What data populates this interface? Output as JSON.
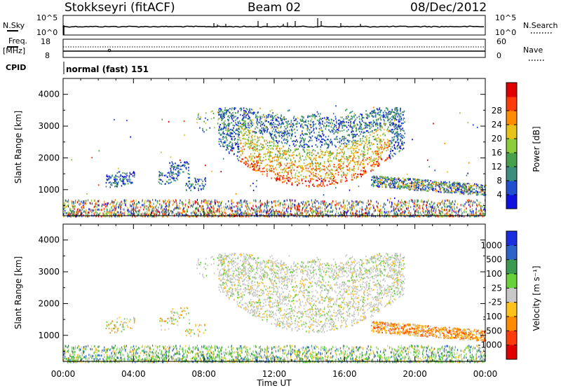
{
  "header": {
    "station": "Stokkseyri (fitACF)",
    "beam": "Beam 02",
    "date": "08/Dec/2012"
  },
  "top_panels": {
    "nsky_label": "N.Sky",
    "nsky_tick_top": "10^5",
    "nsky_tick_bottom": "10^0",
    "nsearch_label": "N.Search",
    "nsearch_tick_top": "10^5",
    "nsearch_tick_bottom": "10^0",
    "freq_label": "Freq.",
    "freq_unit": "[MHz]",
    "freq_tick_top": "18",
    "freq_tick_bottom": "8",
    "nave_label": "Nave",
    "nave_tick_top": "60",
    "nave_tick_bottom": "0",
    "cpid_label": "CPID",
    "cpid_value": "normal (fast) 151"
  },
  "chart_data": [
    {
      "type": "heatmap",
      "title": "",
      "ylabel": "Slant Range [km]",
      "xlabel": "",
      "ylim": [
        180,
        4500
      ],
      "xlim": [
        0,
        24
      ],
      "yticks": [
        "1000",
        "2000",
        "3000",
        "4000"
      ],
      "colorbar_label": "Power [dB]",
      "colorbar_ticks": [
        "4",
        "8",
        "12",
        "16",
        "20",
        "24",
        "28"
      ],
      "colorbar_colors": [
        "#1010e0",
        "#2050d0",
        "#3a8c7e",
        "#46a04c",
        "#8ccb3c",
        "#e6c21a",
        "#ff8c00",
        "#ff3c0a",
        "#e00000"
      ],
      "grid": false
    },
    {
      "type": "heatmap",
      "title": "",
      "ylabel": "Slant Range [km]",
      "xlabel": "Time UT",
      "ylim": [
        180,
        4500
      ],
      "xlim": [
        0,
        24
      ],
      "yticks": [
        "1000",
        "2000",
        "3000",
        "4000"
      ],
      "xticks": [
        "00:00",
        "04:00",
        "08:00",
        "12:00",
        "16:00",
        "20:00",
        "00:00"
      ],
      "colorbar_label": "Velocity [m s⁻¹]",
      "colorbar_ticks": [
        "1000",
        "500",
        "100",
        "25",
        "-25",
        "-100",
        "-500",
        "-1000"
      ],
      "colorbar_colors": [
        "#1a2ee0",
        "#2b63c8",
        "#3a9a50",
        "#66d13a",
        "#c8c8c8",
        "#ffc21a",
        "#ff8c00",
        "#ff3c0a",
        "#e00000"
      ],
      "grid": false
    }
  ]
}
